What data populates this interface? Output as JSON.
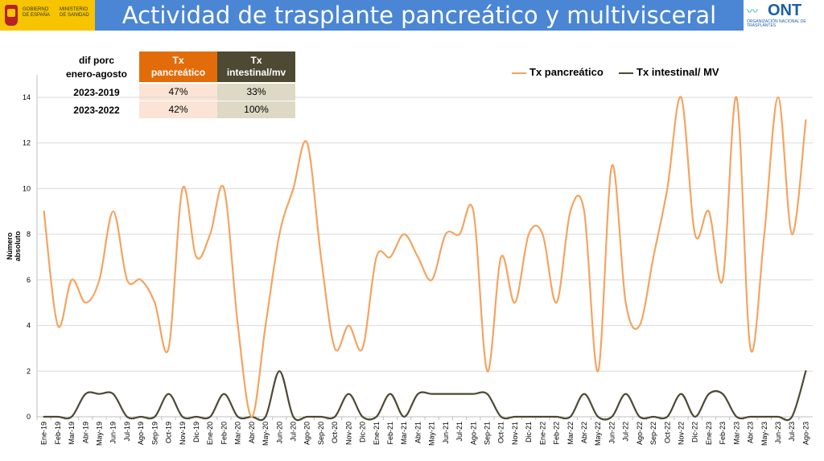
{
  "header": {
    "title": "Actividad de trasplante pancreático y multivisceral",
    "gov_text_1": "GOBIERNO DE ESPAÑA",
    "gov_text_2": "MINISTERIO DE SANIDAD",
    "ont_word": "ONT",
    "ont_sub": "ORGANIZACIÓN NACIONAL DE TRASPLANTES",
    "colors": {
      "title_bar": "#4a86d4",
      "gov_block": "#f6c400"
    }
  },
  "stats_table": {
    "corner_label_1": "dif porc",
    "corner_label_2": "enero-agosto",
    "col1_line1": "Tx",
    "col1_line2": "pancreático",
    "col2_line1": "Tx",
    "col2_line2": "intestinal/mv",
    "rows": [
      {
        "label": "2023-2019",
        "pancreatico": "47%",
        "intestinal": "33%"
      },
      {
        "label": "2023-2022",
        "pancreatico": "42%",
        "intestinal": "100%"
      }
    ]
  },
  "chart_data": {
    "type": "line",
    "ylabel": "Número absoluto",
    "ylim": [
      0,
      14
    ],
    "yticks": [
      0,
      2,
      4,
      6,
      8,
      10,
      12,
      14
    ],
    "grid": true,
    "legend_position": "top-right",
    "categories": [
      "Ene-19",
      "Feb-19",
      "Mar-19",
      "Abr-19",
      "May-19",
      "Jun-19",
      "Jul-19",
      "Ago-19",
      "Sep-19",
      "Oct-19",
      "Nov-19",
      "Dic-19",
      "Ene-20",
      "Feb-20",
      "Mar-20",
      "Abr-20",
      "May-20",
      "Jun-20",
      "Jul-20",
      "Ago-20",
      "Sep-20",
      "Oct-20",
      "Nov-20",
      "Dic-20",
      "Ene-21",
      "Feb-21",
      "Mar-21",
      "Abr-21",
      "May-21",
      "Jun-21",
      "Jul-21",
      "Ago-21",
      "Sep-21",
      "Oct-21",
      "Nov-21",
      "Dic-21",
      "Ene-22",
      "Feb-22",
      "Mar-22",
      "Abr-22",
      "May-22",
      "Jun-22",
      "Jul-22",
      "Ago-22",
      "Sep-22",
      "Oct-22",
      "Nov-22",
      "Dic-22",
      "Ene-23",
      "Feb-23",
      "Mar-23",
      "Abr-23",
      "May-23",
      "Jun-23",
      "Jul-23",
      "Ago-23"
    ],
    "series": [
      {
        "name": "Tx pancreático",
        "color": "#f4a460",
        "values": [
          9,
          4,
          6,
          5,
          6,
          9,
          6,
          6,
          5,
          3,
          10,
          7,
          8,
          10,
          4,
          0,
          4,
          8,
          10,
          12,
          7,
          3,
          4,
          3,
          7,
          7,
          8,
          7,
          6,
          8,
          8,
          9,
          2,
          7,
          5,
          8,
          8,
          5,
          9,
          9,
          2,
          11,
          5,
          4,
          7,
          10,
          14,
          8,
          9,
          6,
          14,
          3,
          8,
          14,
          8,
          13
        ]
      },
      {
        "name": "Tx intestinal/ MV",
        "color": "#4d4933",
        "values": [
          0,
          0,
          0,
          1,
          1,
          1,
          0,
          0,
          0,
          1,
          0,
          0,
          0,
          1,
          0,
          0,
          0,
          2,
          0,
          0,
          0,
          0,
          1,
          0,
          0,
          1,
          0,
          1,
          1,
          1,
          1,
          1,
          1,
          0,
          0,
          0,
          0,
          0,
          0,
          1,
          0,
          0,
          1,
          0,
          0,
          0,
          1,
          0,
          1,
          1,
          0,
          0,
          0,
          0,
          0,
          2
        ]
      }
    ]
  }
}
